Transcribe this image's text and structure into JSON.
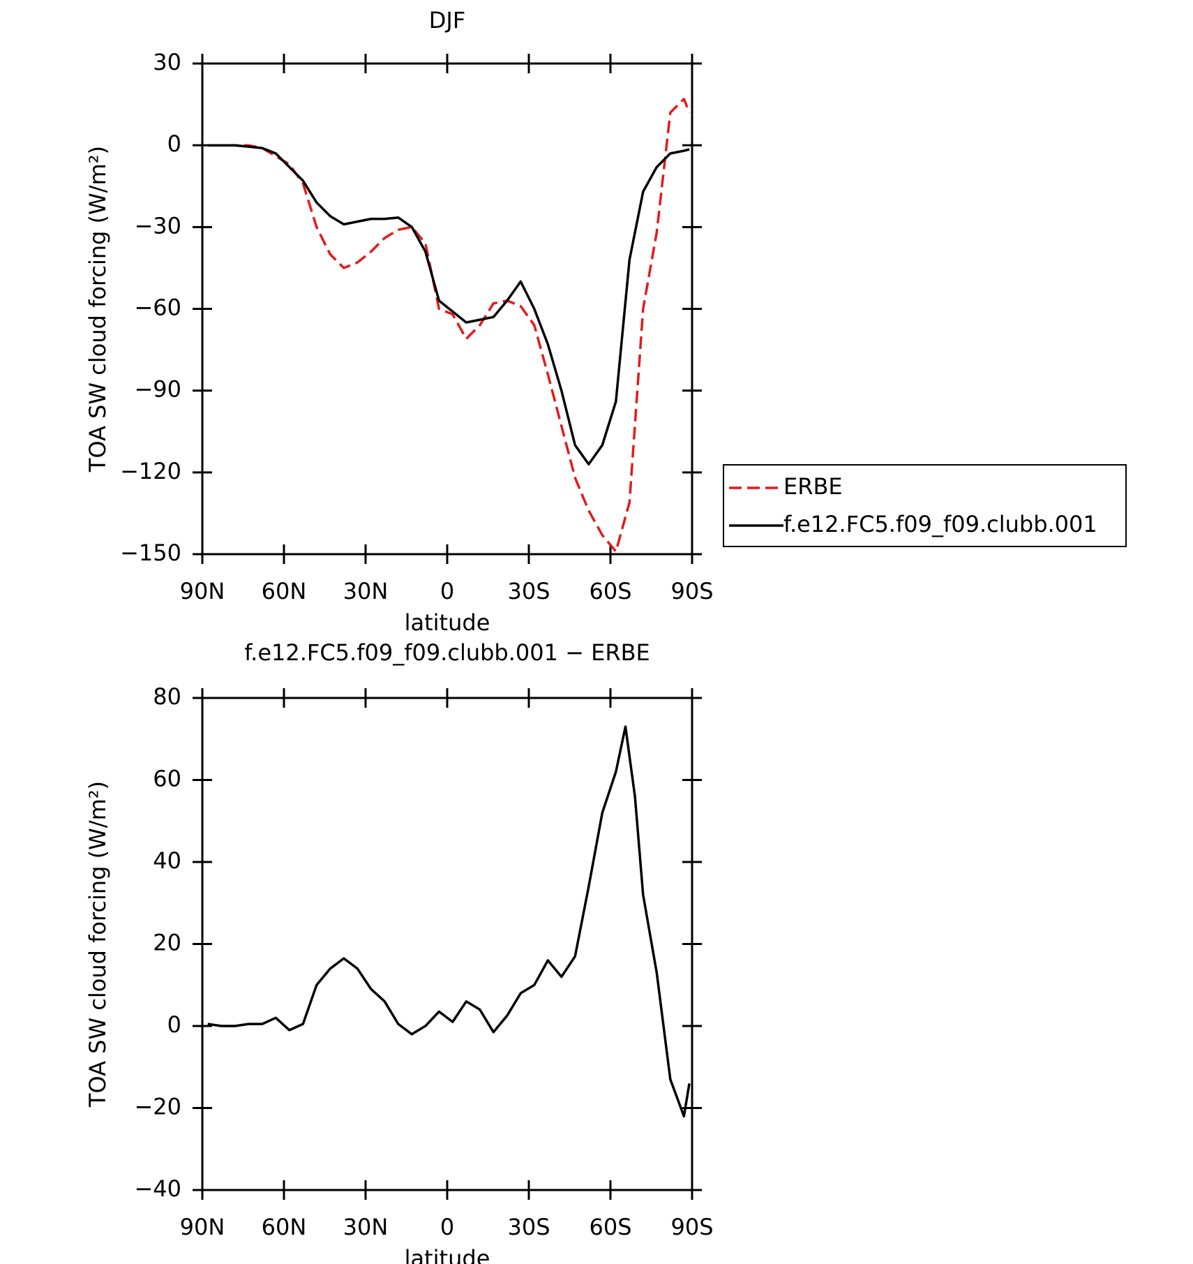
{
  "chart_data": [
    {
      "type": "line",
      "title": "DJF",
      "x_label": "latitude",
      "y_label": "TOA SW cloud forcing (W/m²)",
      "xlim": [
        90,
        -90
      ],
      "xticks": [
        {
          "value": 90,
          "label": "90N"
        },
        {
          "value": 60,
          "label": "60N"
        },
        {
          "value": 30,
          "label": "30N"
        },
        0,
        {
          "value": -30,
          "label": "30S"
        },
        {
          "value": -60,
          "label": "60S"
        },
        {
          "value": -90,
          "label": "90S"
        }
      ],
      "ylim": [
        -150,
        30
      ],
      "yticks": [
        {
          "value": -150,
          "label": "−150"
        },
        {
          "value": -120,
          "label": "−120"
        },
        {
          "value": -90,
          "label": "−90"
        },
        {
          "value": -60,
          "label": "−60"
        },
        {
          "value": -30,
          "label": "−30"
        },
        0,
        30
      ],
      "legend": "right",
      "x": [
        88,
        83,
        78,
        73,
        68,
        63,
        58,
        53,
        48,
        43,
        38,
        33,
        28,
        23,
        18,
        13,
        8,
        3,
        -2,
        -7,
        -12,
        -17,
        -22,
        -27,
        -32,
        -37,
        -42,
        -47,
        -52,
        -57,
        -62,
        -67,
        -72,
        -77,
        -82,
        -87,
        -89
      ],
      "series": [
        {
          "name": "ERBE",
          "color": "#e41a1c",
          "dash": true,
          "values": [
            0,
            0,
            0,
            0,
            -1,
            -4,
            -7,
            -14,
            -30,
            -40,
            -45,
            -43,
            -39,
            -34,
            -31,
            -30,
            -36,
            -60,
            -62,
            -71,
            -66,
            -58,
            -57,
            -59,
            -66,
            -84,
            -103,
            -122,
            -134,
            -143,
            -149,
            -131,
            -60,
            -32,
            12,
            17,
            12
          ]
        },
        {
          "name": "f.e12.FC5.f09_f09.clubb.001",
          "color": "#000000",
          "dash": false,
          "values": [
            0,
            0,
            0,
            -0.5,
            -1,
            -3,
            -8,
            -13,
            -21,
            -26,
            -29,
            -28,
            -27,
            -27,
            -26.5,
            -30,
            -39,
            -57,
            -61,
            -65,
            -64,
            -63,
            -57,
            -50,
            -60,
            -73,
            -90,
            -110,
            -117,
            -110,
            -94,
            -42,
            -17,
            -8,
            -3,
            -2,
            -1.5
          ]
        }
      ]
    },
    {
      "type": "line",
      "title": "f.e12.FC5.f09_f09.clubb.001 − ERBE",
      "x_label": "latitude",
      "y_label": "TOA SW cloud forcing (W/m²)",
      "xlim": [
        90,
        -90
      ],
      "xticks": [
        {
          "value": 90,
          "label": "90N"
        },
        {
          "value": 60,
          "label": "60N"
        },
        {
          "value": 30,
          "label": "30N"
        },
        0,
        {
          "value": -30,
          "label": "30S"
        },
        {
          "value": -60,
          "label": "60S"
        },
        {
          "value": -90,
          "label": "90S"
        }
      ],
      "ylim": [
        -40,
        80
      ],
      "yticks": [
        {
          "value": -40,
          "label": "−40"
        },
        {
          "value": -20,
          "label": "−20"
        },
        0,
        20,
        40,
        60,
        80
      ],
      "x": [
        88,
        83,
        78,
        73,
        68,
        63,
        58,
        53,
        48,
        43,
        38,
        33,
        28,
        23,
        18,
        13,
        8,
        3,
        -2,
        -7,
        -12,
        -17,
        -22,
        -27,
        -32,
        -37,
        -42,
        -47,
        -52,
        -57,
        -62,
        -65.5,
        -69,
        -72,
        -77,
        -82,
        -87,
        -89
      ],
      "series": [
        {
          "name": "f.e12.FC5.f09_f09.clubb.001 − ERBE",
          "color": "#000000",
          "dash": false,
          "values": [
            0.5,
            0,
            0,
            0.5,
            0.5,
            2,
            -1,
            0.5,
            10,
            14,
            16.5,
            14,
            9,
            6,
            0.5,
            -2,
            0,
            3.5,
            1,
            6,
            4,
            -1.5,
            2.5,
            8,
            10,
            16,
            12,
            17,
            34,
            52,
            62,
            73,
            56,
            32,
            13,
            -13,
            -22,
            -14
          ]
        }
      ]
    }
  ]
}
